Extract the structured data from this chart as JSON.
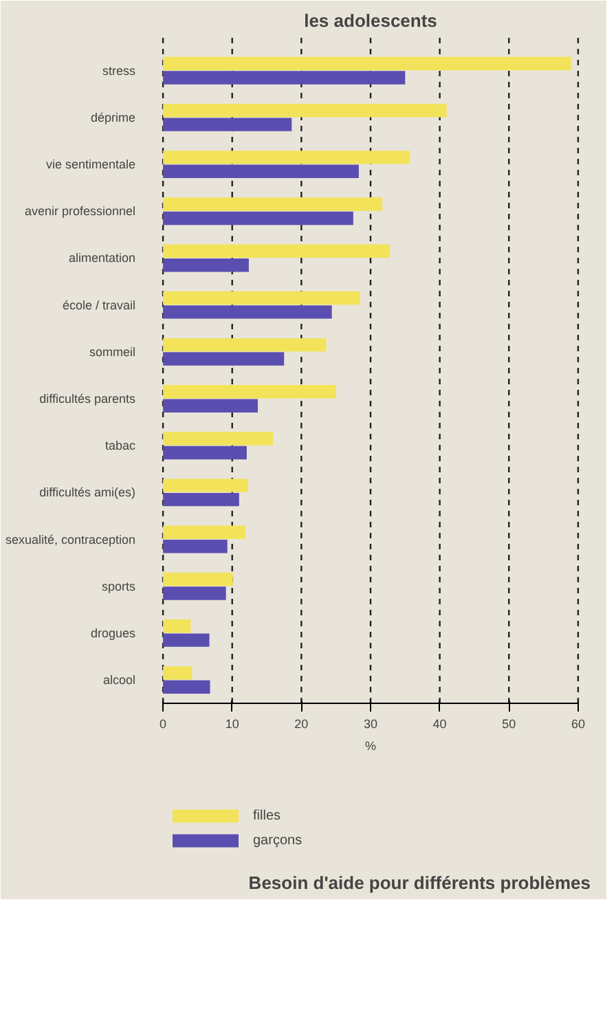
{
  "chart_data": {
    "type": "bar",
    "orientation": "horizontal",
    "title": "les adolescents",
    "subtitle": "Besoin d'aide pour différents problèmes",
    "xlabel": "%",
    "categories": [
      "stress",
      "déprime",
      "vie sentimentale",
      "avenir professionnel",
      "alimentation",
      "école / travail",
      "sommeil",
      "difficultés parents",
      "tabac",
      "difficultés ami(es)",
      "sexualité, contraception",
      "sports",
      "drogues",
      "alcool"
    ],
    "series": [
      {
        "name": "filles",
        "color": "#f2e35a",
        "values": [
          59,
          41,
          35.7,
          31.7,
          32.8,
          28.5,
          23.6,
          25,
          15.9,
          12.3,
          11.9,
          10.1,
          4,
          4.2
        ]
      },
      {
        "name": "garçons",
        "color": "#5a4fb0",
        "values": [
          35,
          18.6,
          28.3,
          27.5,
          12.4,
          24.4,
          17.5,
          13.7,
          12.1,
          11,
          9.3,
          9.1,
          6.7,
          6.8
        ]
      }
    ],
    "xlim": [
      0,
      60
    ],
    "xticks": [
      0,
      10,
      20,
      30,
      40,
      50,
      60
    ],
    "grid": "x",
    "legend": "bottom left"
  }
}
